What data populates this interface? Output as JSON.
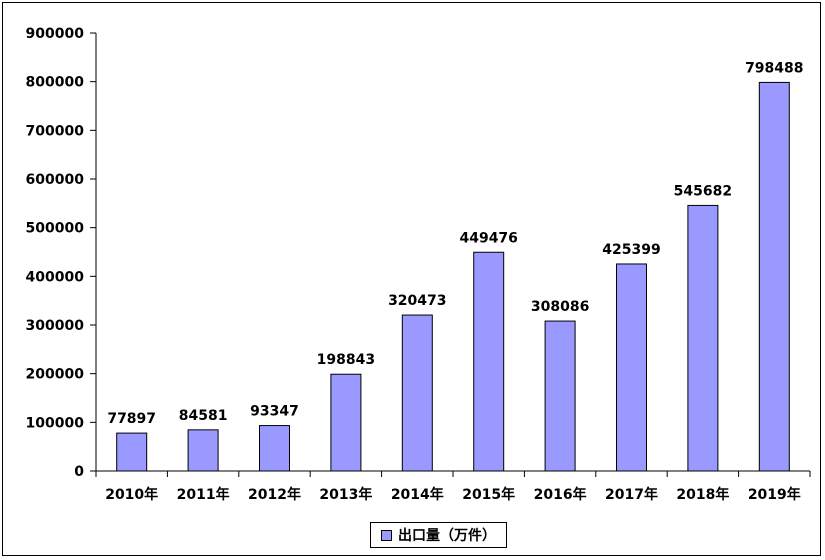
{
  "chart_data": {
    "type": "bar",
    "title": "",
    "xlabel": "",
    "ylabel": "",
    "categories": [
      "2010年",
      "2011年",
      "2012年",
      "2013年",
      "2014年",
      "2015年",
      "2016年",
      "2017年",
      "2018年",
      "2019年"
    ],
    "series": [
      {
        "name": "出口量（万件）",
        "values": [
          77897,
          84581,
          93347,
          198843,
          320473,
          449476,
          308086,
          425399,
          545682,
          798488
        ],
        "color": "#9999ff"
      }
    ],
    "ylim": [
      0,
      900000
    ],
    "yticks": [
      "0",
      "100000",
      "200000",
      "300000",
      "400000",
      "500000",
      "600000",
      "700000",
      "800000",
      "900000"
    ],
    "grid": false,
    "data_labels": [
      "77897",
      "84581",
      "93347",
      "198843",
      "320473",
      "449476",
      "308086",
      "425399",
      "545682",
      "798488"
    ],
    "legend": {
      "position": "bottom",
      "label": "出口量（万件）"
    }
  }
}
